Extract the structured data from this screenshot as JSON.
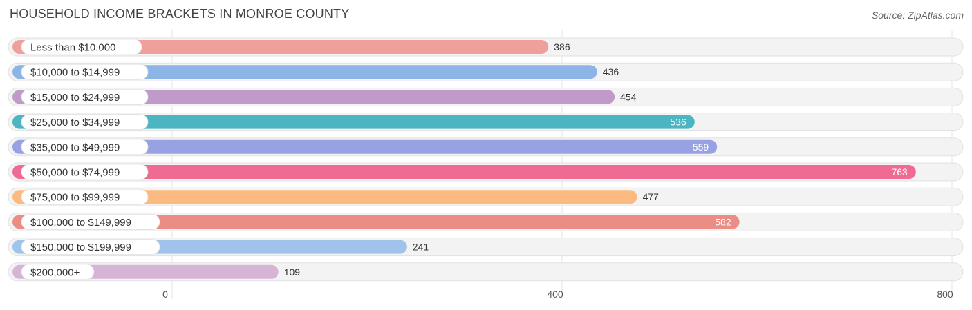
{
  "header": {
    "title": "HOUSEHOLD INCOME BRACKETS IN MONROE COUNTY",
    "source": "Source: ZipAtlas.com"
  },
  "chart_data": {
    "type": "bar",
    "orientation": "horizontal",
    "title": "HOUSEHOLD INCOME BRACKETS IN MONROE COUNTY",
    "xlabel": "",
    "ylabel": "",
    "xlim": [
      0,
      800
    ],
    "ticks": [
      0,
      400,
      800
    ],
    "tick_labels": [
      "0",
      "400",
      "800"
    ],
    "grid": true,
    "categories": [
      "Less than $10,000",
      "$10,000 to $14,999",
      "$15,000 to $24,999",
      "$25,000 to $34,999",
      "$35,000 to $49,999",
      "$50,000 to $74,999",
      "$75,000 to $99,999",
      "$100,000 to $149,999",
      "$150,000 to $199,999",
      "$200,000+"
    ],
    "values": [
      386,
      436,
      454,
      536,
      559,
      763,
      477,
      582,
      241,
      109
    ],
    "value_labels": [
      "386",
      "436",
      "454",
      "536",
      "559",
      "763",
      "477",
      "582",
      "241",
      "109"
    ],
    "colors": [
      "#f0a09c",
      "#8db4e6",
      "#c09ac8",
      "#4bb5c1",
      "#98a2e3",
      "#f06b94",
      "#fbbb80",
      "#eb8d84",
      "#a0c3ec",
      "#d5b4d6"
    ]
  }
}
